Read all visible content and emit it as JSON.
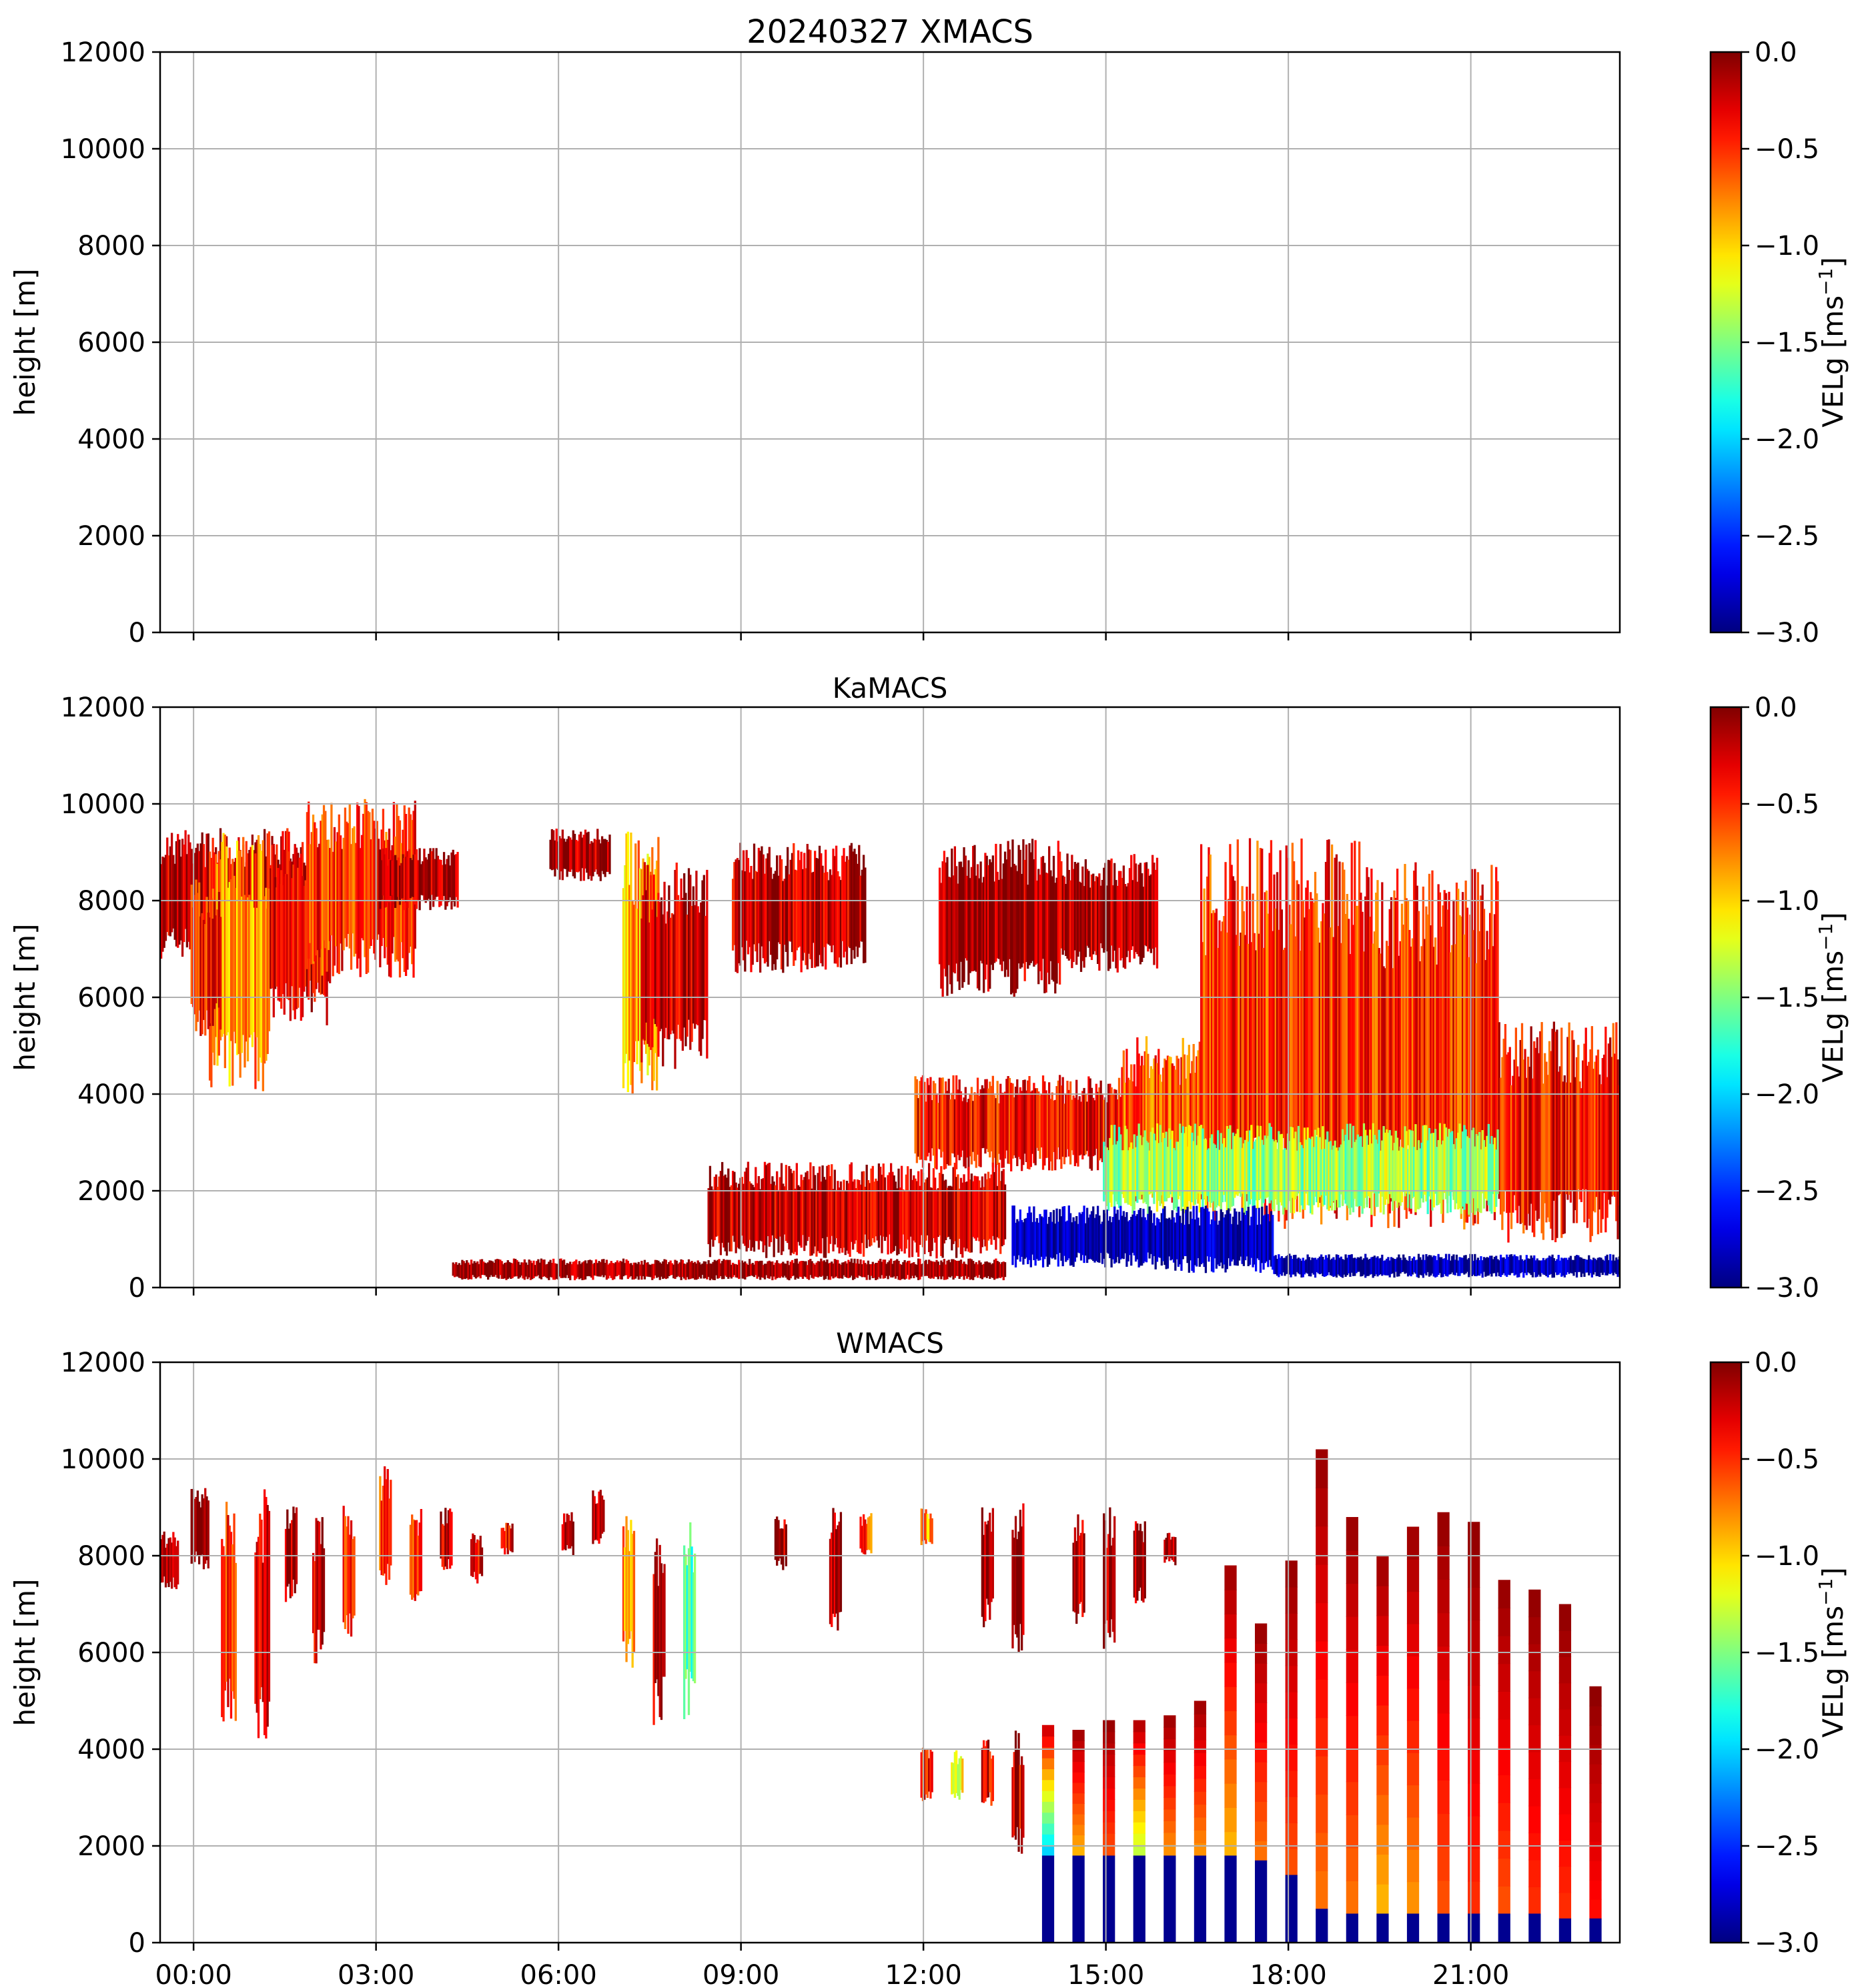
{
  "chart_data": [
    {
      "type": "heatmap",
      "title": "20240327 XMACS",
      "xlabel": "",
      "ylabel": "height [m]",
      "xlim": [
        "00:00",
        "24:00"
      ],
      "ylim": [
        0,
        12000
      ],
      "x_ticks": [
        "00:00",
        "03:00",
        "06:00",
        "09:00",
        "12:00",
        "15:00",
        "18:00",
        "21:00"
      ],
      "y_ticks": [
        0,
        2000,
        4000,
        6000,
        8000,
        10000,
        12000
      ],
      "show_xticklabels": false,
      "grid": true,
      "colorbar": {
        "label": "VELg [ms",
        "label_sup": "−1",
        "label_end": "]",
        "range": [
          -3.0,
          0.0
        ],
        "ticks": [
          "0.0",
          "−0.5",
          "−1.0",
          "−1.5",
          "−2.0",
          "−2.5",
          "−3.0"
        ],
        "colormap": "jet"
      },
      "echoes": []
    },
    {
      "type": "heatmap",
      "title": "KaMACS",
      "xlabel": "",
      "ylabel": "height [m]",
      "xlim": [
        "00:00",
        "24:00"
      ],
      "ylim": [
        0,
        12000
      ],
      "x_ticks": [
        "00:00",
        "03:00",
        "06:00",
        "09:00",
        "12:00",
        "15:00",
        "18:00",
        "21:00"
      ],
      "y_ticks": [
        0,
        2000,
        4000,
        6000,
        8000,
        10000,
        12000
      ],
      "show_xticklabels": false,
      "grid": true,
      "colorbar": {
        "label": "VELg [ms",
        "label_sup": "−1",
        "label_end": "]",
        "range": [
          -3.0,
          0.0
        ],
        "ticks": [
          "0.0",
          "−0.5",
          "−1.0",
          "−1.5",
          "−2.0",
          "−2.5",
          "−3.0"
        ],
        "colormap": "jet"
      },
      "echoes": [
        {
          "t0": 0.0,
          "t1": 2.4,
          "h0": 6800,
          "h1": 9500,
          "v": -0.2
        },
        {
          "t0": 0.8,
          "t1": 1.8,
          "h0": 4000,
          "h1": 9400,
          "v": -0.8
        },
        {
          "t0": 0.5,
          "t1": 1.0,
          "h0": 5200,
          "h1": 8500,
          "v": -0.4
        },
        {
          "t0": 1.8,
          "t1": 2.8,
          "h0": 5400,
          "h1": 9200,
          "v": -0.3
        },
        {
          "t0": 2.4,
          "t1": 4.2,
          "h0": 6400,
          "h1": 10100,
          "v": -0.5
        },
        {
          "t0": 3.6,
          "t1": 4.9,
          "h0": 7800,
          "h1": 9100,
          "v": -0.1
        },
        {
          "t0": 6.4,
          "t1": 7.4,
          "h0": 8400,
          "h1": 9500,
          "v": -0.1
        },
        {
          "t0": 7.6,
          "t1": 8.2,
          "h0": 3900,
          "h1": 9500,
          "v": -0.9
        },
        {
          "t0": 7.9,
          "t1": 9.0,
          "h0": 4500,
          "h1": 8800,
          "v": -0.2
        },
        {
          "t0": 9.4,
          "t1": 11.6,
          "h0": 6500,
          "h1": 9200,
          "v": -0.2
        },
        {
          "t0": 12.8,
          "t1": 14.8,
          "h0": 6000,
          "h1": 9300,
          "v": -0.1
        },
        {
          "t0": 14.8,
          "t1": 16.4,
          "h0": 6500,
          "h1": 9000,
          "v": -0.1
        },
        {
          "t0": 12.4,
          "t1": 15.8,
          "h0": 2400,
          "h1": 4400,
          "v": -0.4
        },
        {
          "t0": 15.8,
          "t1": 17.1,
          "h0": 1700,
          "h1": 5200,
          "v": -0.6
        },
        {
          "t0": 17.1,
          "t1": 19.8,
          "h0": 1200,
          "h1": 9300,
          "v": -0.5
        },
        {
          "t0": 19.8,
          "t1": 22.0,
          "h0": 1200,
          "h1": 8800,
          "v": -0.5
        },
        {
          "t0": 22.0,
          "t1": 24.0,
          "h0": 900,
          "h1": 5500,
          "v": -0.4
        },
        {
          "t0": 15.5,
          "t1": 22.0,
          "h0": 1500,
          "h1": 3400,
          "v": -1.4
        },
        {
          "t0": 14.0,
          "t1": 16.3,
          "h0": 400,
          "h1": 1700,
          "v": -2.9
        },
        {
          "t0": 16.3,
          "t1": 18.3,
          "h0": 300,
          "h1": 1700,
          "v": -2.9
        },
        {
          "t0": 18.3,
          "t1": 24.0,
          "h0": 200,
          "h1": 700,
          "v": -2.9
        },
        {
          "t0": 4.8,
          "t1": 13.9,
          "h0": 150,
          "h1": 600,
          "v": -0.05
        },
        {
          "t0": 9.0,
          "t1": 13.9,
          "h0": 600,
          "h1": 2600,
          "v": -0.2
        }
      ]
    },
    {
      "type": "heatmap",
      "title": "WMACS",
      "xlabel": "",
      "ylabel": "height [m]",
      "xlim": [
        "00:00",
        "24:00"
      ],
      "ylim": [
        0,
        12000
      ],
      "x_ticks": [
        "00:00",
        "03:00",
        "06:00",
        "09:00",
        "12:00",
        "15:00",
        "18:00",
        "21:00"
      ],
      "y_ticks": [
        0,
        2000,
        4000,
        6000,
        8000,
        10000,
        12000
      ],
      "show_xticklabels": true,
      "grid": true,
      "colorbar": {
        "label": "VELg [ms",
        "label_sup": "−1",
        "label_end": "]",
        "range": [
          -3.0,
          0.0
        ],
        "ticks": [
          "0.0",
          "−0.5",
          "−1.0",
          "−1.5",
          "−2.0",
          "−2.5",
          "−3.0"
        ],
        "colormap": "jet"
      },
      "echoes": [
        {
          "t0": 0.0,
          "t1": 0.3,
          "h0": 7300,
          "h1": 8500,
          "v": -0.3
        },
        {
          "t0": 0.5,
          "t1": 0.8,
          "h0": 7700,
          "h1": 9400,
          "v": -0.1
        },
        {
          "t0": 1.0,
          "t1": 1.25,
          "h0": 4500,
          "h1": 9200,
          "v": -0.5
        },
        {
          "t0": 1.55,
          "t1": 1.8,
          "h0": 4200,
          "h1": 9400,
          "v": -0.4
        },
        {
          "t0": 2.05,
          "t1": 2.25,
          "h0": 7000,
          "h1": 9100,
          "v": -0.1
        },
        {
          "t0": 2.5,
          "t1": 2.7,
          "h0": 5700,
          "h1": 8800,
          "v": -0.2
        },
        {
          "t0": 3.0,
          "t1": 3.2,
          "h0": 6300,
          "h1": 9200,
          "v": -0.4
        },
        {
          "t0": 3.6,
          "t1": 3.8,
          "h0": 7300,
          "h1": 9900,
          "v": -0.6
        },
        {
          "t0": 4.1,
          "t1": 4.3,
          "h0": 6800,
          "h1": 9100,
          "v": -0.5
        },
        {
          "t0": 4.6,
          "t1": 4.8,
          "h0": 7700,
          "h1": 9000,
          "v": -0.2
        },
        {
          "t0": 5.1,
          "t1": 5.3,
          "h0": 7400,
          "h1": 8500,
          "v": -0.3
        },
        {
          "t0": 5.6,
          "t1": 5.8,
          "h0": 8000,
          "h1": 8700,
          "v": -0.3
        },
        {
          "t0": 6.6,
          "t1": 6.8,
          "h0": 8000,
          "h1": 8900,
          "v": -0.1
        },
        {
          "t0": 7.1,
          "t1": 7.3,
          "h0": 8200,
          "h1": 9400,
          "v": -0.1
        },
        {
          "t0": 7.6,
          "t1": 7.8,
          "h0": 5600,
          "h1": 9000,
          "v": -0.8
        },
        {
          "t0": 8.1,
          "t1": 8.3,
          "h0": 4500,
          "h1": 8600,
          "v": -0.1
        },
        {
          "t0": 8.6,
          "t1": 8.8,
          "h0": 4600,
          "h1": 8900,
          "v": -1.6
        },
        {
          "t0": 10.1,
          "t1": 10.3,
          "h0": 7700,
          "h1": 8900,
          "v": -0.1
        },
        {
          "t0": 11.0,
          "t1": 11.2,
          "h0": 6200,
          "h1": 9100,
          "v": -0.1
        },
        {
          "t0": 11.5,
          "t1": 11.7,
          "h0": 7900,
          "h1": 8900,
          "v": -0.6
        },
        {
          "t0": 12.5,
          "t1": 12.7,
          "h0": 8200,
          "h1": 9000,
          "v": -0.8
        },
        {
          "t0": 13.5,
          "t1": 13.7,
          "h0": 6500,
          "h1": 9000,
          "v": -0.1
        },
        {
          "t0": 14.0,
          "t1": 14.2,
          "h0": 5900,
          "h1": 9100,
          "v": -0.2
        },
        {
          "t0": 15.0,
          "t1": 15.2,
          "h0": 6500,
          "h1": 9000,
          "v": -0.1
        },
        {
          "t0": 15.5,
          "t1": 15.7,
          "h0": 6000,
          "h1": 9000,
          "v": -0.1
        },
        {
          "t0": 16.0,
          "t1": 16.2,
          "h0": 7000,
          "h1": 8800,
          "v": -0.1
        },
        {
          "t0": 16.5,
          "t1": 16.7,
          "h0": 7800,
          "h1": 8500,
          "v": -0.1
        },
        {
          "t0": 12.5,
          "t1": 12.7,
          "h0": 2900,
          "h1": 4100,
          "v": -0.4
        },
        {
          "t0": 13.0,
          "t1": 13.2,
          "h0": 2900,
          "h1": 4000,
          "v": -1.2
        },
        {
          "t0": 13.5,
          "t1": 13.7,
          "h0": 2800,
          "h1": 4200,
          "v": -0.3
        },
        {
          "t0": 14.0,
          "t1": 14.2,
          "h0": 1800,
          "h1": 4400,
          "v": -0.3
        }
      ],
      "scans": {
        "t_start": 14.5,
        "t_step": 0.5,
        "width_hours": 0.2,
        "tops": [
          4500,
          4400,
          4600,
          4600,
          4700,
          5000,
          7800,
          6600,
          7900,
          10200,
          8800,
          8000,
          8600,
          8900,
          8700,
          7500,
          7300,
          7000,
          5300
        ],
        "mid_v": [
          -2.0,
          -0.9,
          -0.6,
          -1.3,
          -0.8,
          -0.8,
          -0.9,
          -0.7,
          -0.6,
          -0.7,
          -0.7,
          -0.9,
          -0.8,
          -0.6,
          -0.5,
          -0.6,
          -0.5,
          -0.5,
          -0.4
        ],
        "fall_tops": [
          1800,
          1800,
          1800,
          1800,
          1800,
          1800,
          1800,
          1700,
          1400,
          700,
          600,
          600,
          600,
          600,
          600,
          600,
          600,
          500,
          500
        ]
      }
    }
  ]
}
